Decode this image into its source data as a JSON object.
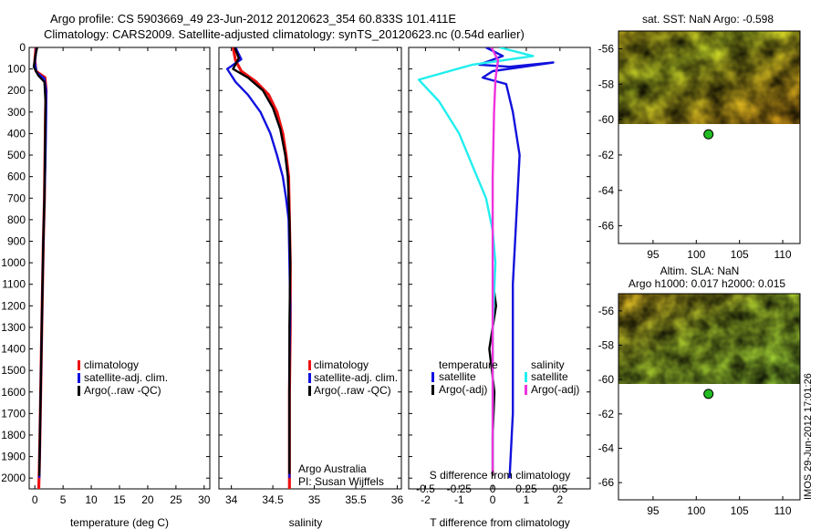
{
  "title_line1": "Argo profile: CS 5903669_49 23-Jun-2012 20120623_354 60.833S 101.411E",
  "title_line2": "Climatology: CARS2009. Satellite-adjusted climatology: synTS_20120623.nc (0.54d earlier)",
  "footer_stamp": "IMOS 29-Jun-2012 17:01:26",
  "colors": {
    "climatology": "#ee1111",
    "satellite": "#1111dd",
    "argo": "#000000",
    "salinity_satellite": "#22eeee",
    "salinity_argo": "#ee33dd",
    "marker_fill": "#22bb22"
  },
  "chart_data": [
    {
      "type": "line",
      "xlabel": "temperature (deg C)",
      "ylabel": "",
      "xlim": [
        -1,
        31
      ],
      "ylim": [
        2050,
        0
      ],
      "xticks": [
        0,
        5,
        10,
        15,
        20,
        25,
        30
      ],
      "xtick_labels": [
        "0",
        "5",
        "10",
        "15",
        "20",
        "25",
        "30"
      ],
      "yticks": [
        0,
        100,
        200,
        300,
        400,
        500,
        600,
        700,
        800,
        900,
        1000,
        1100,
        1200,
        1300,
        1400,
        1500,
        1600,
        1700,
        1800,
        1900,
        2000
      ],
      "ytick_labels": [
        "0",
        "100",
        "200",
        "300",
        "400",
        "500",
        "600",
        "700",
        "800",
        "900",
        "1000",
        "1100",
        "1200",
        "1300",
        "1400",
        "1500",
        "1600",
        "1700",
        "1800",
        "1900",
        "2000"
      ],
      "legend": [
        "climatology",
        "satellite-adj. clim.",
        "Argo(..raw -QC)"
      ],
      "legend_position": "lower-right",
      "series": [
        {
          "name": "climatology",
          "color_key": "climatology",
          "x": [
            0.2,
            0.0,
            0.2,
            1.8,
            2.0,
            1.9,
            1.8,
            1.7,
            1.5,
            1.3,
            1.1,
            0.9,
            0.8,
            0.7
          ],
          "y": [
            0,
            60,
            110,
            140,
            200,
            300,
            500,
            700,
            900,
            1200,
            1500,
            1800,
            1950,
            2050
          ]
        },
        {
          "name": "satellite-adj. clim.",
          "color_key": "satellite",
          "x": [
            0.3,
            0.0,
            0.3,
            1.7,
            2.0,
            2.0,
            1.9,
            1.7,
            1.5,
            1.3,
            1.1,
            0.9,
            0.8
          ],
          "y": [
            0,
            70,
            115,
            145,
            200,
            300,
            500,
            700,
            900,
            1200,
            1500,
            1800,
            2000
          ]
        },
        {
          "name": "Argo(..raw -QC)",
          "color_key": "argo",
          "x": [
            0.4,
            0.1,
            -0.2,
            0.6,
            1.7,
            1.9,
            1.8,
            1.7,
            1.5,
            1.3,
            1.1,
            0.9,
            0.8
          ],
          "y": [
            0,
            40,
            90,
            130,
            160,
            250,
            500,
            700,
            900,
            1200,
            1500,
            1800,
            1990
          ]
        }
      ]
    },
    {
      "type": "line",
      "xlabel": "salinity",
      "ylabel": "",
      "xlim": [
        33.85,
        36.05
      ],
      "ylim": [
        2050,
        0
      ],
      "xticks": [
        34,
        34.5,
        35,
        35.5,
        36
      ],
      "xtick_labels": [
        "34",
        "34.5",
        "35",
        "35.5",
        "36"
      ],
      "legend": [
        "climatology",
        "satellite-adj. clim.",
        "Argo(..raw -QC)"
      ],
      "legend_position": "lower-right",
      "annotation_line1": "Argo Australia",
      "annotation_line2": "PI: Susan Wijffels",
      "series": [
        {
          "name": "climatology",
          "color_key": "climatology",
          "x": [
            34.02,
            34.05,
            34.12,
            34.3,
            34.45,
            34.55,
            34.62,
            34.66,
            34.69,
            34.7,
            34.71,
            34.71,
            34.7,
            34.7,
            34.7
          ],
          "y": [
            0,
            60,
            110,
            160,
            220,
            300,
            400,
            500,
            600,
            800,
            1000,
            1300,
            1600,
            1900,
            2050
          ]
        },
        {
          "name": "satellite-adj. clim.",
          "color_key": "satellite",
          "x": [
            34.05,
            34.12,
            33.95,
            34.05,
            34.2,
            34.35,
            34.47,
            34.55,
            34.62,
            34.66,
            34.69,
            34.7,
            34.71,
            34.7,
            34.7
          ],
          "y": [
            0,
            55,
            100,
            160,
            220,
            300,
            400,
            500,
            600,
            700,
            800,
            1000,
            1200,
            1500,
            2000
          ]
        },
        {
          "name": "Argo(..raw -QC)",
          "color_key": "argo",
          "x": [
            34.04,
            34.09,
            34.02,
            34.2,
            34.38,
            34.5,
            34.59,
            34.65,
            34.68,
            34.7,
            34.71,
            34.7,
            34.7,
            34.7
          ],
          "y": [
            0,
            50,
            100,
            140,
            200,
            280,
            380,
            500,
            600,
            800,
            1000,
            1300,
            1600,
            1980
          ]
        }
      ]
    },
    {
      "type": "line",
      "xlabel": "T difference from climatology",
      "ylabel": "",
      "secondary_xlabel": "S difference from climatology",
      "xlim": [
        -2.5,
        2.9
      ],
      "ylim": [
        2050,
        0
      ],
      "xticks": [
        -2,
        -1,
        0,
        1,
        2
      ],
      "xtick_labels": [
        "-2",
        "-1",
        "0",
        "1",
        "2"
      ],
      "secondary_xticks": [
        -0.5,
        -0.25,
        0,
        0.25,
        0.5
      ],
      "secondary_xtick_labels": [
        "-0.5",
        "-0.25",
        "0",
        "0.25",
        "0.5"
      ],
      "secondary_xlim": [
        -0.625,
        0.725
      ],
      "legend_temperature_title": "temperature",
      "legend_salinity_title": "salinity",
      "legend_temperature": [
        "satellite",
        "Argo(-adj)"
      ],
      "legend_salinity": [
        "satellite",
        "Argo(-adj)"
      ],
      "legend_position": "lower-right",
      "series": [
        {
          "name": "satellite",
          "group": "temperature",
          "color_key": "satellite",
          "x": [
            -0.2,
            0.3,
            -0.4,
            0.5,
            1.8,
            0.0,
            -0.3,
            0.4,
            0.6,
            0.8,
            0.7,
            0.6,
            0.6,
            0.6,
            0.5
          ],
          "y": [
            0,
            40,
            80,
            90,
            70,
            110,
            140,
            170,
            300,
            500,
            800,
            1100,
            1400,
            1700,
            2000
          ]
        },
        {
          "name": "Argo(-adj)",
          "group": "temperature",
          "color_key": "argo",
          "x": [
            0.0,
            0.1,
            -0.1,
            0.05,
            0.0,
            0.0,
            0.0,
            0.0
          ],
          "y": [
            1080,
            1200,
            1400,
            1600,
            1800,
            1900,
            1960,
            1990
          ]
        },
        {
          "name": "satellite",
          "group": "salinity",
          "color_key": "salinity_satellite",
          "x": [
            0.05,
            0.3,
            -0.15,
            -0.55,
            -0.4,
            -0.25,
            -0.15,
            -0.05,
            0.0,
            0.02,
            0.0,
            0.0,
            0.0
          ],
          "y": [
            0,
            40,
            80,
            150,
            250,
            400,
            550,
            700,
            850,
            1000,
            1300,
            1600,
            1960
          ]
        },
        {
          "name": "Argo(-adj)",
          "group": "salinity",
          "color_key": "salinity_argo",
          "x": [
            -0.01,
            0.04,
            0.03,
            0.02,
            0.01,
            0.0,
            0.0,
            0.0,
            0.0,
            0.0
          ],
          "y": [
            0,
            60,
            100,
            150,
            300,
            600,
            900,
            1300,
            1700,
            1980
          ]
        }
      ]
    },
    {
      "type": "heatmap",
      "title": "sat. SST: NaN Argo: -0.598",
      "xlim": [
        91,
        112
      ],
      "ylim": [
        -67,
        -55
      ],
      "xticks": [
        95,
        100,
        105,
        110
      ],
      "xtick_labels": [
        "95",
        "100",
        "105",
        "110"
      ],
      "yticks": [
        -56,
        -58,
        -60,
        -62,
        -64,
        -66
      ],
      "ytick_labels": [
        "-56",
        "-58",
        "-60",
        "-62",
        "-64",
        "-66"
      ],
      "data_extent_lat": [
        -60.2,
        -55
      ],
      "marker": {
        "lon": 101.411,
        "lat": -60.833
      }
    },
    {
      "type": "heatmap",
      "title_line1": "Altim. SLA: NaN",
      "title_line2": "Argo h1000: 0.017 h2000: 0.015",
      "xlim": [
        91,
        112
      ],
      "ylim": [
        -67,
        -55
      ],
      "xticks": [
        95,
        100,
        105,
        110
      ],
      "xtick_labels": [
        "95",
        "100",
        "105",
        "110"
      ],
      "yticks": [
        -56,
        -58,
        -60,
        -62,
        -64,
        -66
      ],
      "ytick_labels": [
        "-56",
        "-58",
        "-60",
        "-62",
        "-64",
        "-66"
      ],
      "data_extent_lat": [
        -60.2,
        -55
      ],
      "marker": {
        "lon": 101.411,
        "lat": -60.833
      }
    }
  ]
}
